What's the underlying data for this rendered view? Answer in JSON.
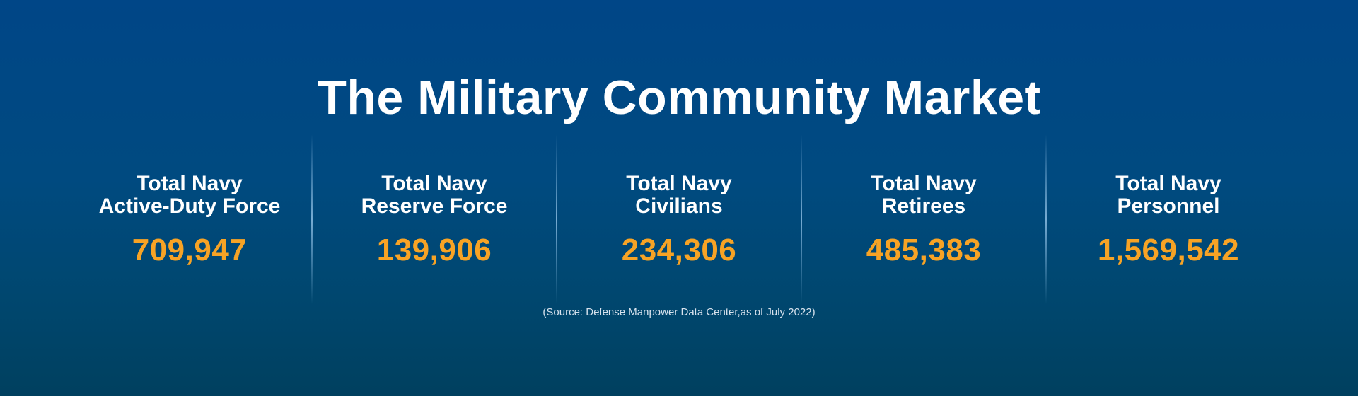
{
  "title": "The Military Community Market",
  "stats": [
    {
      "label_line1": "Total Navy",
      "label_line2": "Active-Duty Force",
      "value": "709,947"
    },
    {
      "label_line1": "Total Navy",
      "label_line2": "Reserve Force",
      "value": "139,906"
    },
    {
      "label_line1": "Total Navy",
      "label_line2": "Civilians",
      "value": "234,306"
    },
    {
      "label_line1": "Total Navy",
      "label_line2": "Retirees",
      "value": "485,383"
    },
    {
      "label_line1": "Total Navy",
      "label_line2": "Personnel",
      "value": "1,569,542"
    }
  ],
  "source": "(Source: Defense Manpower Data Center,as of July 2022)",
  "colors": {
    "background_top": "#004687",
    "background_bottom": "#00405f",
    "title": "#ffffff",
    "value": "#f7a325",
    "source": "#d8e3ee"
  }
}
